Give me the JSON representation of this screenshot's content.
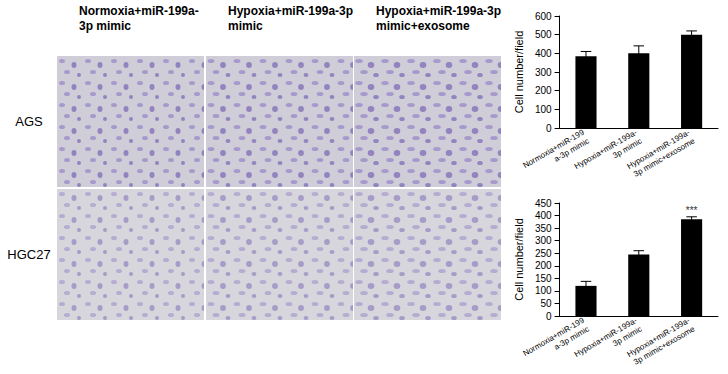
{
  "panels": {
    "column_titles": [
      "Normoxia+miR-199a-3p mimic",
      "Hypoxia+miR-199a-3p mimic",
      "Hypoxia+miR-199a-3p mimic+exosome"
    ],
    "row_labels": [
      "AGS",
      "HGC27"
    ]
  },
  "chart_data": [
    {
      "type": "bar",
      "ylabel": "Cell number/field",
      "categories": [
        "Normoxia+miR-199a-3p mimic",
        "Hypoxia+miR-199a-3p mimic",
        "Hypoxia+miR-199a-3p mimic+exosome"
      ],
      "values": [
        385,
        400,
        500
      ],
      "errors": [
        25,
        40,
        20
      ],
      "color": "#000000",
      "ylim": [
        0,
        600
      ],
      "yticks": [
        0,
        100,
        200,
        300,
        400,
        500,
        600
      ],
      "grid": false
    },
    {
      "type": "bar",
      "ylabel": "Cell number/field",
      "categories": [
        "Normoxia+miR-199a-3p mimic",
        "Hypoxia+miR-199a-3p mimic",
        "Hypoxia+miR-199a-3p mimic+exosome"
      ],
      "values": [
        120,
        245,
        385
      ],
      "errors": [
        18,
        15,
        10
      ],
      "color": "#000000",
      "ylim": [
        0,
        450
      ],
      "yticks": [
        0,
        50,
        100,
        150,
        200,
        250,
        300,
        350,
        400,
        450
      ],
      "grid": false,
      "annotations": [
        {
          "text": "***",
          "category": "Hypoxia+miR-199a-3p mimic+exosome"
        }
      ]
    }
  ]
}
